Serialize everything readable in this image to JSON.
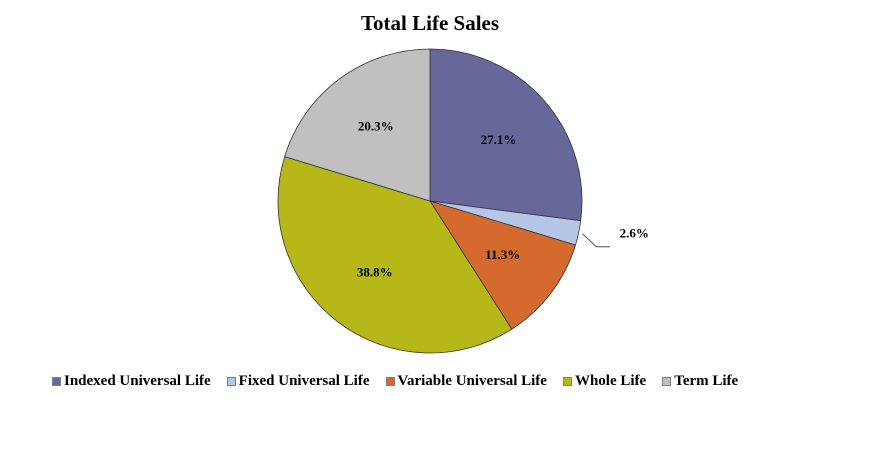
{
  "chart_data": {
    "type": "pie",
    "title": "Total Life Sales",
    "categories": [
      "Indexed Universal Life",
      "Fixed Universal Life",
      "Variable Universal Life",
      "Whole Life",
      "Term Life"
    ],
    "values": [
      27.1,
      2.6,
      11.3,
      38.8,
      20.3
    ],
    "value_labels": [
      "27.1%",
      "2.6%",
      "11.3%",
      "38.8%",
      "20.3%"
    ],
    "colors": [
      "#67679a",
      "#b5c6e6",
      "#d46a2e",
      "#b6b81a",
      "#c0c0c0"
    ],
    "legend_position": "bottom",
    "start_angle_deg": 0,
    "direction": "clockwise"
  }
}
